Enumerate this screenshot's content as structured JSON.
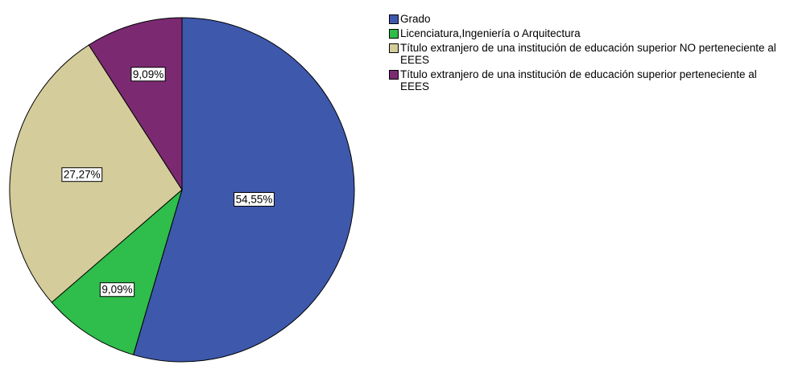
{
  "chart_data": {
    "type": "pie",
    "categories": [
      "Grado",
      "Licenciatura,Ingeniería o Arquitectura",
      "Título extranjero de una institución de educación superior NO perteneciente al EEES",
      "Título extranjero de una institución de educación superior perteneciente al EEES"
    ],
    "values": [
      54.55,
      9.09,
      27.27,
      9.09
    ],
    "value_labels": [
      "54,55%",
      "9,09%",
      "27,27%",
      "9,09%"
    ],
    "colors": [
      "#3e58ac",
      "#2fbd4b",
      "#d4cc9a",
      "#7b2a72"
    ],
    "legend": "right"
  }
}
